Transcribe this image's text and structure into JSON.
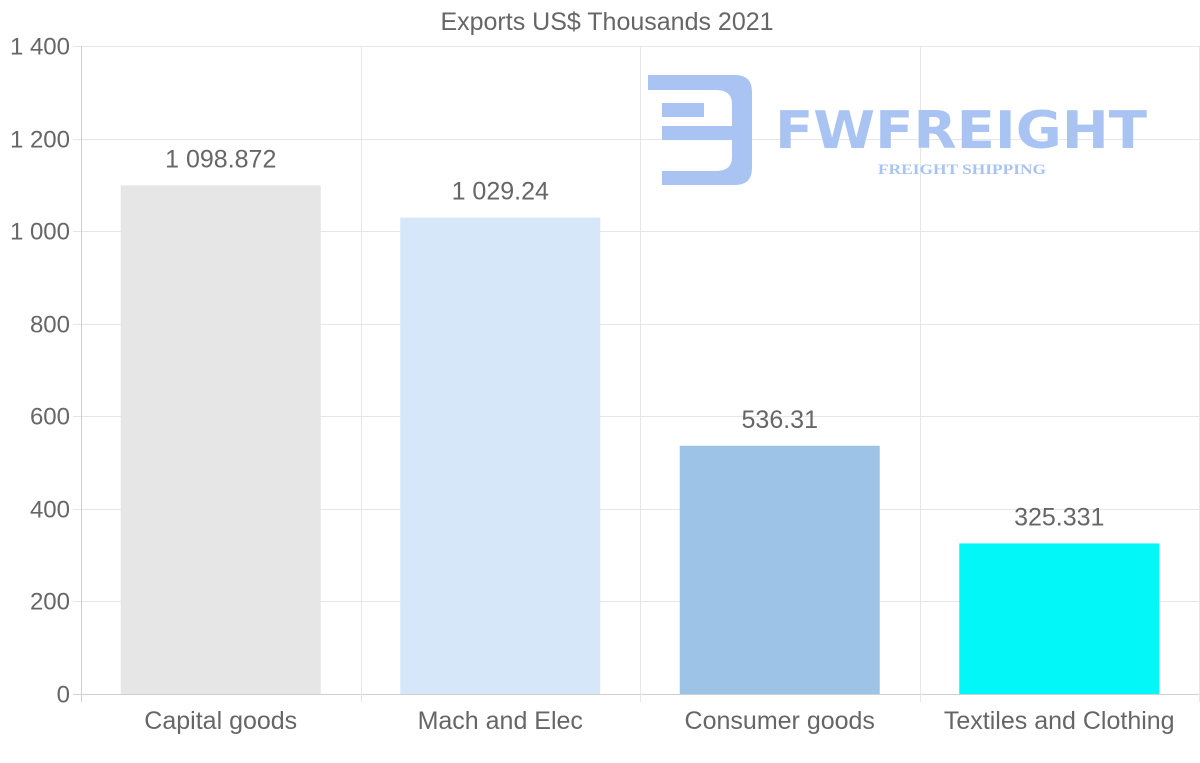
{
  "chart_data": {
    "type": "bar",
    "title": "Exports US$ Thousands 2021",
    "categories": [
      "Capital goods",
      "Mach and Elec",
      "Consumer goods",
      "Textiles and Clothing"
    ],
    "values": [
      1098.872,
      1029.24,
      536.31,
      325.331
    ],
    "value_labels": [
      "1 098.872",
      "1 029.24",
      "536.31",
      "325.331"
    ],
    "bar_colors": [
      "#e6e6e6",
      "#d6e7f9",
      "#9dc4e6",
      "#02f8f8"
    ],
    "ylim": [
      0,
      1400
    ],
    "yticks": [
      0,
      200,
      400,
      600,
      800,
      1000,
      1200,
      1400
    ],
    "ytick_labels": [
      "0",
      "200",
      "400",
      "600",
      "800",
      "1 000",
      "1 200",
      "1 400"
    ],
    "xlabel": "",
    "ylabel": "",
    "grid": true,
    "legend": "none"
  },
  "watermark": {
    "brand": "FWFREIGHT",
    "tagline": "FREIGHT SHIPPING",
    "color": "#a9c4f2"
  }
}
